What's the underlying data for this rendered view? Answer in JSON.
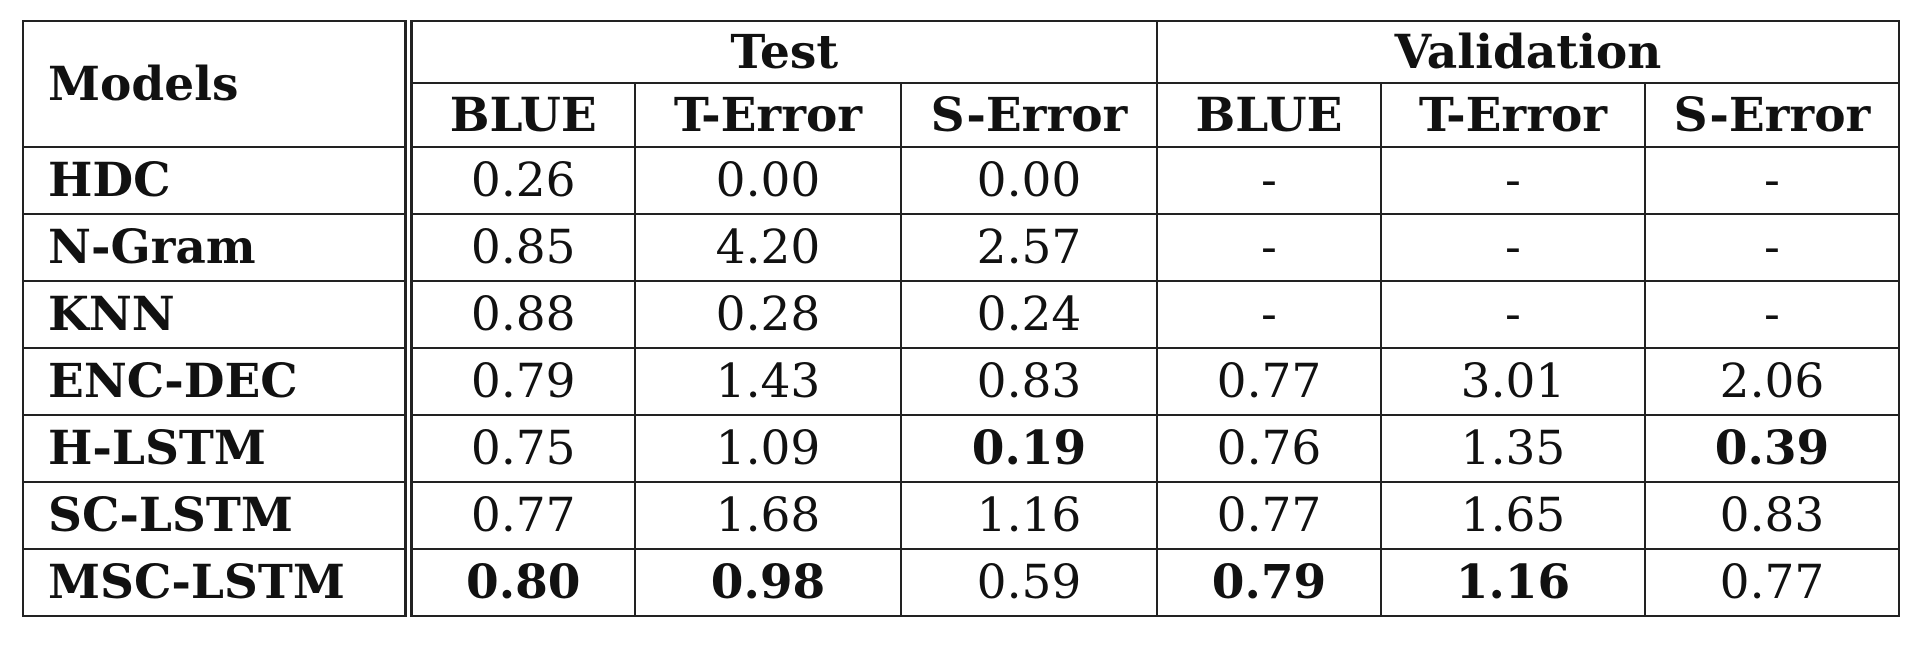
{
  "table": {
    "corner_header": "Models",
    "groups": [
      "Test",
      "Validation"
    ],
    "metrics": [
      "BLUE",
      "T-Error",
      "S-Error",
      "BLUE",
      "T-Error",
      "S-Error"
    ],
    "rows": [
      {
        "model": "HDC",
        "values": [
          "0.26",
          "0.00",
          "0.00",
          "-",
          "-",
          "-"
        ],
        "bold": [
          false,
          false,
          false,
          false,
          false,
          false
        ]
      },
      {
        "model": "N-Gram",
        "values": [
          "0.85",
          "4.20",
          "2.57",
          "-",
          "-",
          "-"
        ],
        "bold": [
          false,
          false,
          false,
          false,
          false,
          false
        ]
      },
      {
        "model": "KNN",
        "values": [
          "0.88",
          "0.28",
          "0.24",
          "-",
          "-",
          "-"
        ],
        "bold": [
          false,
          false,
          false,
          false,
          false,
          false
        ]
      },
      {
        "model": "ENC-DEC",
        "values": [
          "0.79",
          "1.43",
          "0.83",
          "0.77",
          "3.01",
          "2.06"
        ],
        "bold": [
          false,
          false,
          false,
          false,
          false,
          false
        ]
      },
      {
        "model": "H-LSTM",
        "values": [
          "0.75",
          "1.09",
          "0.19",
          "0.76",
          "1.35",
          "0.39"
        ],
        "bold": [
          false,
          false,
          true,
          false,
          false,
          true
        ]
      },
      {
        "model": "SC-LSTM",
        "values": [
          "0.77",
          "1.68",
          "1.16",
          "0.77",
          "1.65",
          "0.83"
        ],
        "bold": [
          false,
          false,
          false,
          false,
          false,
          false
        ]
      },
      {
        "model": "MSC-LSTM",
        "values": [
          "0.80",
          "0.98",
          "0.59",
          "0.79",
          "1.16",
          "0.77"
        ],
        "bold": [
          true,
          true,
          false,
          true,
          true,
          false
        ]
      }
    ]
  }
}
